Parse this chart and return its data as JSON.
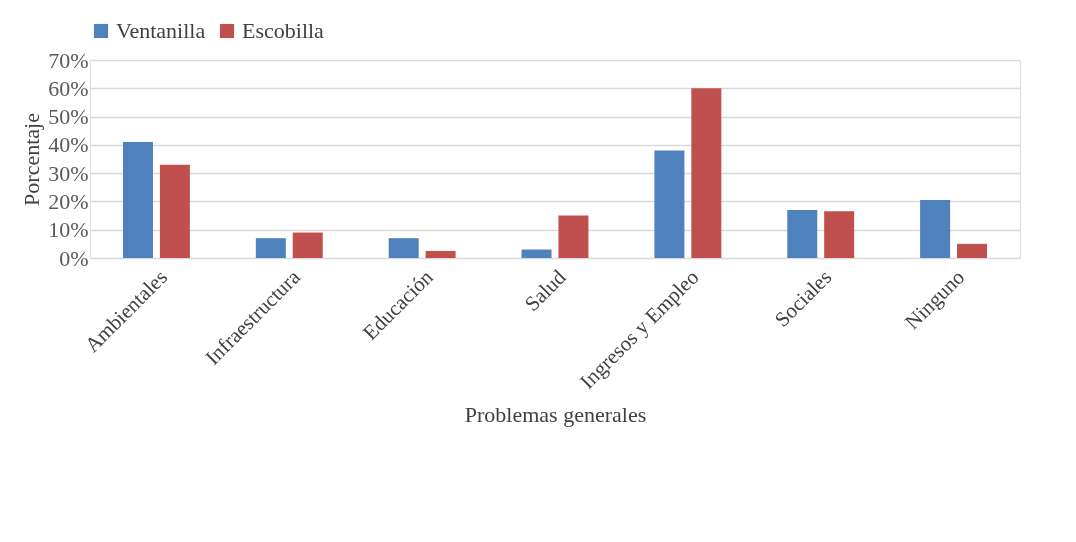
{
  "chart_data": {
    "type": "bar",
    "xlabel": "Problemas generales",
    "ylabel": "Porcentaje",
    "categories": [
      "Ambientales",
      "Infraestructura",
      "Educación",
      "Salud",
      "Ingresos y Empleo",
      "Sociales",
      "Ninguno"
    ],
    "series": [
      {
        "name": "Ventanilla",
        "color": "#4f81bd",
        "values": [
          41,
          7,
          7,
          3,
          38,
          17,
          20.5
        ]
      },
      {
        "name": "Escobilla",
        "color": "#c0504d",
        "values": [
          33,
          9,
          2.5,
          15,
          60,
          16.5,
          5
        ]
      }
    ],
    "ylim": [
      0,
      70
    ],
    "yticks": [
      {
        "value": 0,
        "label": "0%"
      },
      {
        "value": 10,
        "label": "10%"
      },
      {
        "value": 20,
        "label": "20%"
      },
      {
        "value": 30,
        "label": "30%"
      },
      {
        "value": 40,
        "label": "40%"
      },
      {
        "value": 50,
        "label": "50%"
      },
      {
        "value": 60,
        "label": "60%"
      },
      {
        "value": 70,
        "label": "70%"
      }
    ],
    "grid": "y",
    "legend": "top"
  }
}
